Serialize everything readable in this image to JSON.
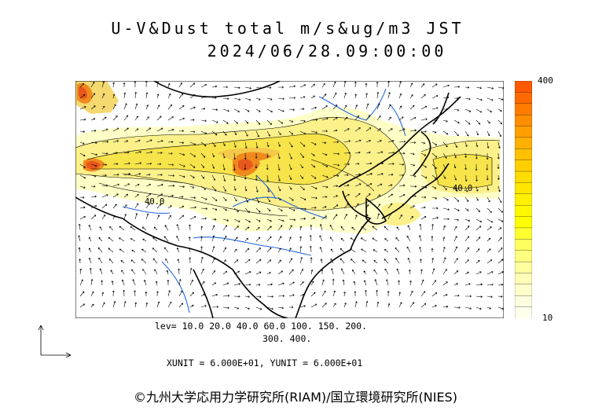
{
  "header": {
    "title_line1": "U-V&Dust total m/s&ug/m3 JST",
    "title_line2": "2024/06/28.09:00:00"
  },
  "map": {
    "contour_labels": [
      "40.0",
      "40.0"
    ],
    "colors": {
      "land_outline": "#000000",
      "river": "#2266dd",
      "contour": "#000000",
      "low": "#ffffc8",
      "mid": "#f3e13a",
      "high": "#f08a1e",
      "max": "#e8571b"
    }
  },
  "colorbar": {
    "max_label": "400",
    "min_label": "10",
    "colors": [
      "#ff5a00",
      "#ff6a00",
      "#ff7c00",
      "#ff8e00",
      "#ffa000",
      "#ffb000",
      "#ffc000",
      "#ffcf00",
      "#ffdc00",
      "#ffe600",
      "#fff000",
      "#fff800",
      "#ffff00",
      "#ffff30",
      "#ffff60",
      "#ffff80",
      "#ffffa0",
      "#ffffb8",
      "#ffffcc",
      "#ffffe0",
      "#ffffee"
    ]
  },
  "legend": {
    "lev_line1": "lev= 10.0 20.0 40.0 60.0 100. 150. 200.",
    "lev_line2": "300. 400.",
    "units_line": "XUNIT = 6.000E+01, YUNIT = 6.000E+01"
  },
  "footer": {
    "credit": "©九州大学応用力学研究所(RIAM)/国立環境研究所(NIES)"
  }
}
